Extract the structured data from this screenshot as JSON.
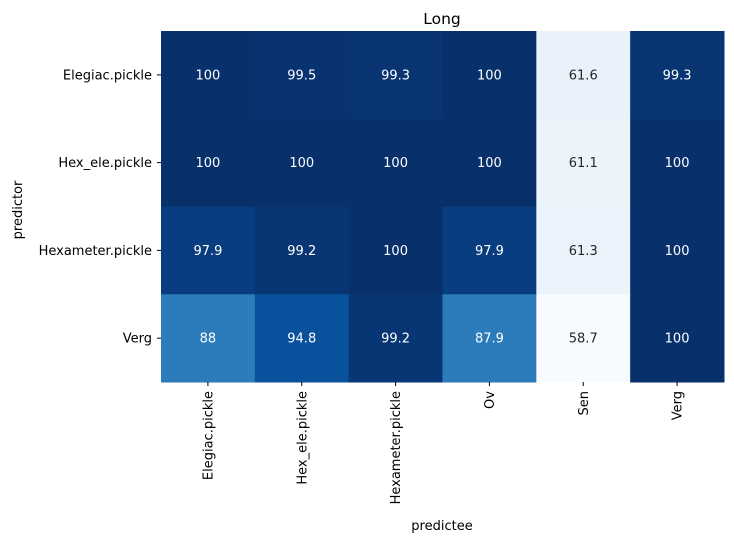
{
  "chart_data": {
    "type": "heatmap",
    "title": "Long",
    "xlabel": "predictee",
    "ylabel": "predictor",
    "x_categories": [
      "Elegiac.pickle",
      "Hex_ele.pickle",
      "Hexameter.pickle",
      "Ov",
      "Sen",
      "Verg"
    ],
    "y_categories": [
      "Elegiac.pickle",
      "Hex_ele.pickle",
      "Hexameter.pickle",
      "Verg"
    ],
    "values": [
      [
        100,
        99.5,
        99.3,
        100,
        61.6,
        99.3
      ],
      [
        100,
        100,
        100,
        100,
        61.1,
        100
      ],
      [
        97.9,
        99.2,
        100,
        97.9,
        61.3,
        100
      ],
      [
        88,
        94.8,
        99.2,
        87.9,
        58.7,
        100
      ]
    ],
    "colormap": "Blues",
    "value_range": [
      58.7,
      100
    ],
    "colorbar": false,
    "annotations": true,
    "grid": false
  }
}
